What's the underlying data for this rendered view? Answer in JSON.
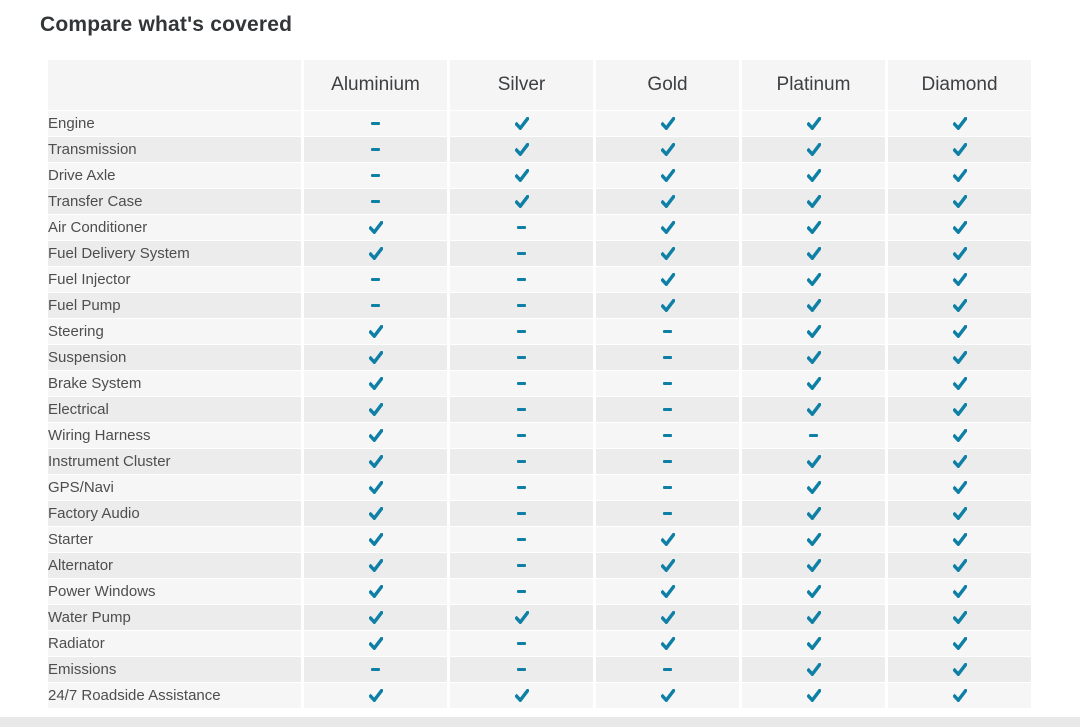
{
  "page_title": "Compare what's covered",
  "colors": {
    "accent_teal": "#0e80a6",
    "row_light": "#f6f6f6",
    "row_dark": "#ececec",
    "header_bg": "#f5f5f5",
    "title_text": "#333638",
    "header_text": "#3c4043",
    "label_text": "#4e4e4e",
    "bottom_strip": "#e8e8e8"
  },
  "table": {
    "plans": [
      "Aluminium",
      "Silver",
      "Gold",
      "Platinum",
      "Diamond"
    ],
    "icons": {
      "covered": "check-icon",
      "not_covered": "dash-icon"
    },
    "rows": [
      {
        "label": "Engine",
        "covered": [
          false,
          true,
          true,
          true,
          true
        ]
      },
      {
        "label": "Transmission",
        "covered": [
          false,
          true,
          true,
          true,
          true
        ]
      },
      {
        "label": "Drive Axle",
        "covered": [
          false,
          true,
          true,
          true,
          true
        ]
      },
      {
        "label": "Transfer Case",
        "covered": [
          false,
          true,
          true,
          true,
          true
        ]
      },
      {
        "label": "Air Conditioner",
        "covered": [
          true,
          false,
          true,
          true,
          true
        ]
      },
      {
        "label": "Fuel Delivery System",
        "covered": [
          true,
          false,
          true,
          true,
          true
        ]
      },
      {
        "label": "Fuel Injector",
        "covered": [
          false,
          false,
          true,
          true,
          true
        ]
      },
      {
        "label": "Fuel Pump",
        "covered": [
          false,
          false,
          true,
          true,
          true
        ]
      },
      {
        "label": "Steering",
        "covered": [
          true,
          false,
          false,
          true,
          true
        ]
      },
      {
        "label": "Suspension",
        "covered": [
          true,
          false,
          false,
          true,
          true
        ]
      },
      {
        "label": "Brake System",
        "covered": [
          true,
          false,
          false,
          true,
          true
        ]
      },
      {
        "label": "Electrical",
        "covered": [
          true,
          false,
          false,
          true,
          true
        ]
      },
      {
        "label": "Wiring Harness",
        "covered": [
          true,
          false,
          false,
          false,
          true
        ]
      },
      {
        "label": "Instrument Cluster",
        "covered": [
          true,
          false,
          false,
          true,
          true
        ]
      },
      {
        "label": "GPS/Navi",
        "covered": [
          true,
          false,
          false,
          true,
          true
        ]
      },
      {
        "label": "Factory Audio",
        "covered": [
          true,
          false,
          false,
          true,
          true
        ]
      },
      {
        "label": "Starter",
        "covered": [
          true,
          false,
          true,
          true,
          true
        ]
      },
      {
        "label": "Alternator",
        "covered": [
          true,
          false,
          true,
          true,
          true
        ]
      },
      {
        "label": "Power Windows",
        "covered": [
          true,
          false,
          true,
          true,
          true
        ]
      },
      {
        "label": "Water Pump",
        "covered": [
          true,
          true,
          true,
          true,
          true
        ]
      },
      {
        "label": "Radiator",
        "covered": [
          true,
          false,
          true,
          true,
          true
        ]
      },
      {
        "label": "Emissions",
        "covered": [
          false,
          false,
          false,
          true,
          true
        ]
      },
      {
        "label": "24/7 Roadside Assistance",
        "covered": [
          true,
          true,
          true,
          true,
          true
        ]
      }
    ]
  }
}
